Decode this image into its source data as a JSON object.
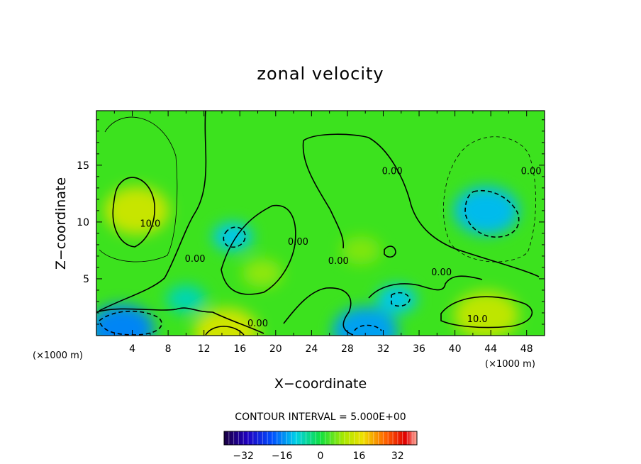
{
  "chart_data": {
    "type": "contour",
    "title": "zonal velocity",
    "xlabel": "X−coordinate",
    "ylabel": "Z−coordinate",
    "x_unit_label_left": "(×1000 m)",
    "x_unit_label_right": "(×1000 m)",
    "xlim": [
      0,
      50
    ],
    "ylim": [
      0,
      19.8
    ],
    "x_ticks": [
      4,
      8,
      12,
      16,
      20,
      24,
      28,
      32,
      36,
      40,
      44,
      48
    ],
    "y_ticks": [
      5,
      10,
      15
    ],
    "contour_interval_text": "CONTOUR INTERVAL = 5.000E+00",
    "contour_interval": 5.0,
    "contour_labels": [
      {
        "text": "10.0",
        "x": 6.0,
        "y": 9.6
      },
      {
        "text": "0.00",
        "x": 11.0,
        "y": 6.5
      },
      {
        "text": "0.00",
        "x": 22.5,
        "y": 8.0
      },
      {
        "text": "0.00",
        "x": 27.0,
        "y": 6.3
      },
      {
        "text": "0.00",
        "x": 33.0,
        "y": 14.2
      },
      {
        "text": "0.00",
        "x": 48.5,
        "y": 14.2
      },
      {
        "text": "0.00",
        "x": 38.5,
        "y": 5.3
      },
      {
        "text": "0.00",
        "x": 18.0,
        "y": 0.8
      },
      {
        "text": "10.0",
        "x": 42.5,
        "y": 1.2
      }
    ],
    "colorbar": {
      "ticks": [
        -32,
        -16,
        0,
        16,
        32
      ],
      "range": [
        -40,
        40
      ]
    },
    "features": [
      {
        "kind": "max",
        "x": 4.5,
        "y": 11.0,
        "value": 13
      },
      {
        "kind": "max",
        "x": 43.5,
        "y": 1.8,
        "value": 12
      },
      {
        "kind": "max",
        "x": 14.5,
        "y": 0.3,
        "value": 14
      },
      {
        "kind": "max",
        "x": 18.5,
        "y": 5.5,
        "value": 8
      },
      {
        "kind": "max",
        "x": 29.5,
        "y": 7.5,
        "value": 7
      },
      {
        "kind": "min",
        "x": 43.5,
        "y": 11.0,
        "value": -12
      },
      {
        "kind": "min",
        "x": 15.2,
        "y": 8.7,
        "value": -11
      },
      {
        "kind": "min",
        "x": 2.8,
        "y": 0.6,
        "value": -16
      },
      {
        "kind": "min",
        "x": 30.0,
        "y": 0.4,
        "value": -14
      },
      {
        "kind": "min",
        "x": 33.5,
        "y": 3.2,
        "value": -11
      },
      {
        "kind": "min",
        "x": 10.0,
        "y": 3.2,
        "value": -7
      }
    ]
  }
}
